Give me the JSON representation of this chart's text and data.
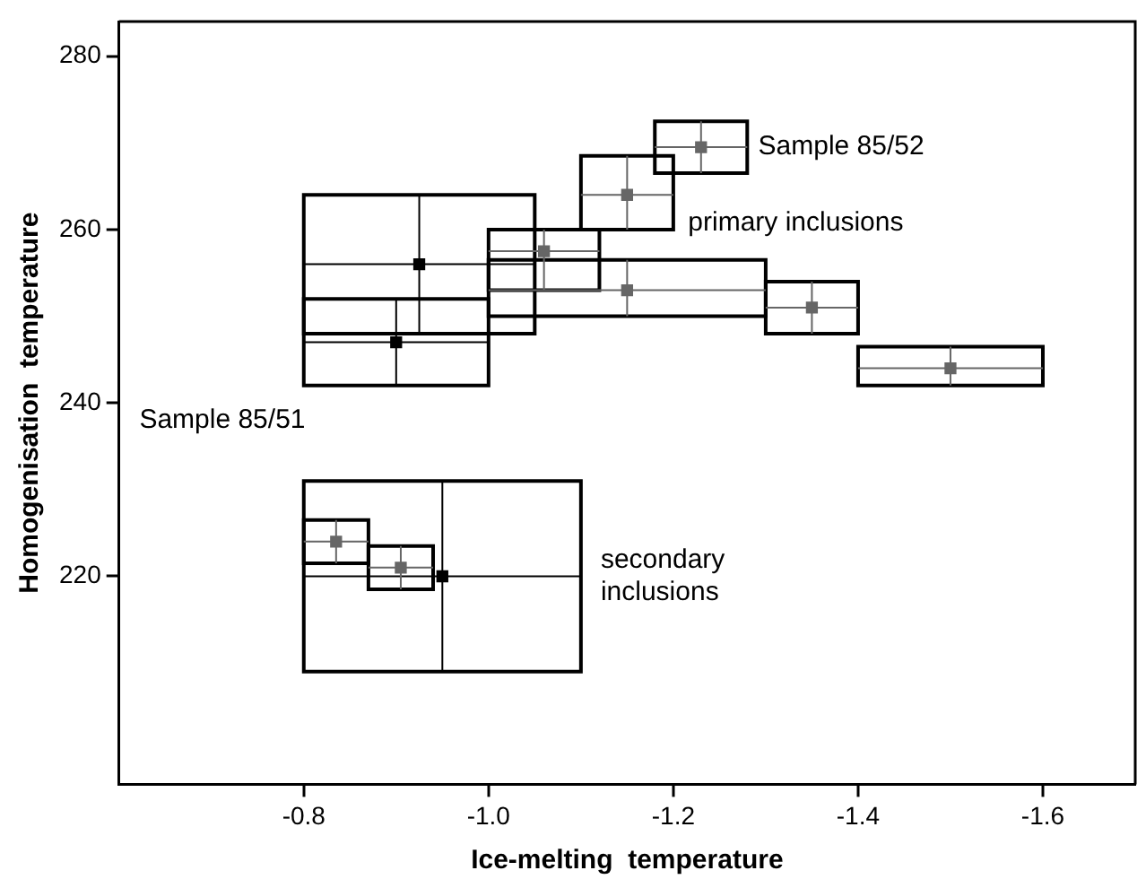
{
  "chart_data": {
    "type": "scatter",
    "xlabel": "Ice-melting  temperature",
    "ylabel": "Homogenisation  temperature",
    "xlim": [
      -0.6,
      -1.7
    ],
    "xticks": [
      {
        "value": -0.8,
        "label": "-0.8"
      },
      {
        "value": -1.0,
        "label": "-1.0"
      },
      {
        "value": -1.2,
        "label": "-1.2"
      },
      {
        "value": -1.4,
        "label": "-1.4"
      },
      {
        "value": -1.6,
        "label": "-1.6"
      }
    ],
    "ylim": [
      196,
      284
    ],
    "yticks": [
      220,
      240,
      260,
      280
    ],
    "grid": false,
    "legend": false,
    "marker": "square",
    "series": [
      {
        "color": "#000000",
        "x": [
          -0.925,
          -0.9,
          -0.95
        ],
        "values": [
          256,
          247,
          220
        ],
        "xerrors": [
          [
            -0.8,
            -1.05
          ],
          [
            -0.8,
            -1.0
          ],
          [
            -0.8,
            -1.1
          ]
        ],
        "errors": [
          [
            248,
            264
          ],
          [
            242,
            252
          ],
          [
            209,
            231
          ]
        ]
      },
      {
        "color": "#666666",
        "x": [
          -1.23,
          -1.15,
          -1.06,
          -1.15,
          -1.35,
          -1.5,
          -0.835,
          -0.905
        ],
        "values": [
          269.5,
          264,
          257.5,
          253,
          251,
          244,
          224,
          221
        ],
        "xerrors": [
          [
            -1.18,
            -1.28
          ],
          [
            -1.1,
            -1.2
          ],
          [
            -1.0,
            -1.12
          ],
          [
            -1.0,
            -1.3
          ],
          [
            -1.3,
            -1.4
          ],
          [
            -1.4,
            -1.6
          ],
          [
            -0.8,
            -0.87
          ],
          [
            -0.87,
            -0.94
          ]
        ],
        "errors": [
          [
            266.5,
            272.5
          ],
          [
            260,
            268.5
          ],
          [
            253,
            260
          ],
          [
            250,
            256.5
          ],
          [
            248,
            254
          ],
          [
            242,
            246.5
          ],
          [
            221.5,
            226.5
          ],
          [
            218.5,
            223.5
          ]
        ]
      }
    ],
    "annotations": [
      "Sample 85/52",
      "primary inclusions",
      "Sample 85/51",
      "secondary\ninclusions"
    ]
  }
}
